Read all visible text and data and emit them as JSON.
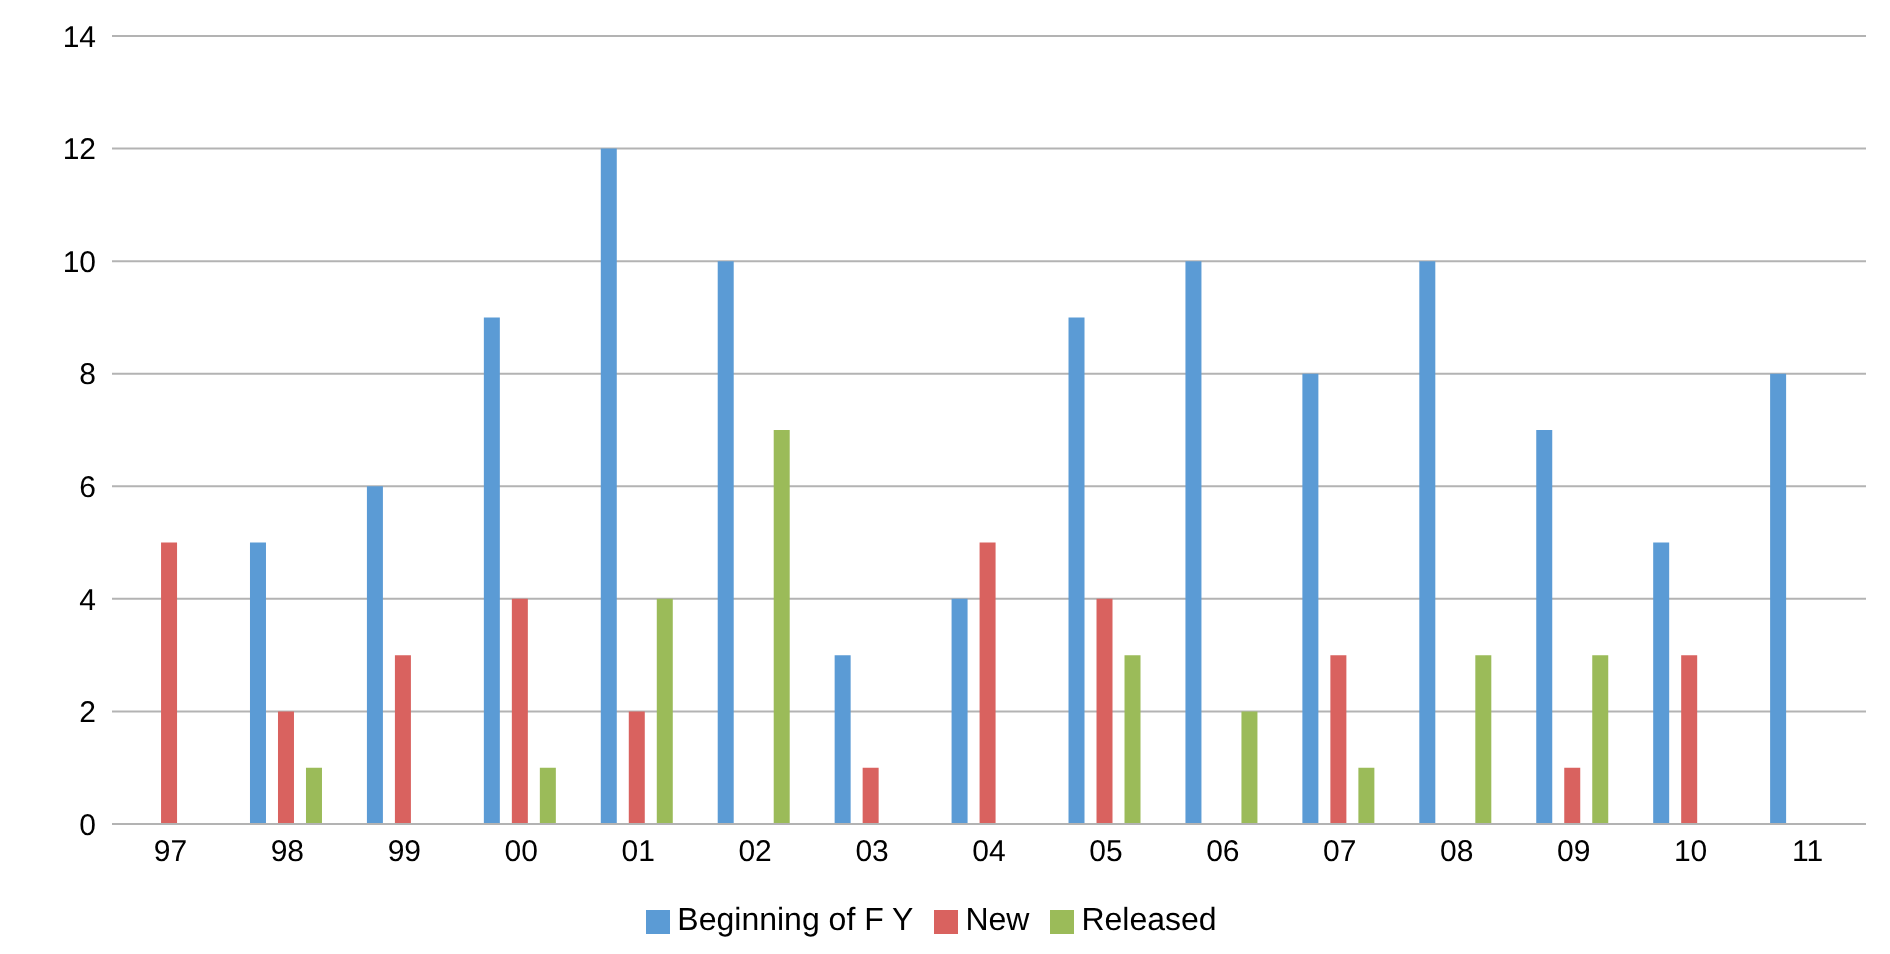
{
  "chart_data": {
    "type": "bar",
    "categories": [
      "97",
      "98",
      "99",
      "00",
      "01",
      "02",
      "03",
      "04",
      "05",
      "06",
      "07",
      "08",
      "09",
      "10",
      "11"
    ],
    "series": [
      {
        "name": "Beginning of F Y",
        "color": "#5b9bd5",
        "values": [
          0,
          5,
          6,
          9,
          12,
          10,
          3,
          4,
          9,
          10,
          8,
          10,
          7,
          5,
          8
        ]
      },
      {
        "name": "New",
        "color": "#d9625f",
        "values": [
          5,
          2,
          3,
          4,
          2,
          0,
          1,
          5,
          4,
          0,
          3,
          0,
          1,
          3,
          0
        ]
      },
      {
        "name": "Released",
        "color": "#9bbb59",
        "values": [
          0,
          1,
          0,
          1,
          4,
          7,
          0,
          0,
          3,
          2,
          1,
          3,
          3,
          0,
          0
        ]
      }
    ],
    "ylim": [
      0,
      14
    ],
    "yticks": [
      0,
      2,
      4,
      6,
      8,
      10,
      12,
      14
    ],
    "grid": "y",
    "legend": "bottom"
  }
}
